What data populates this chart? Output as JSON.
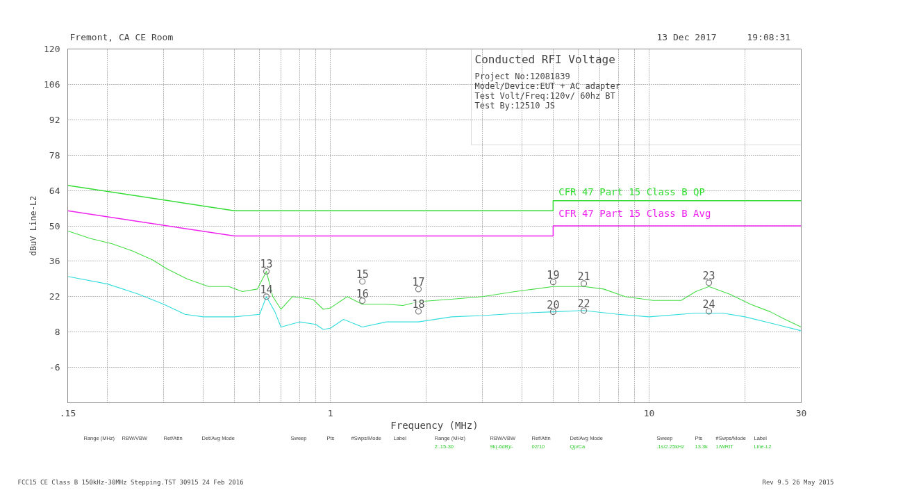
{
  "chart_data": {
    "type": "line",
    "title": "Conducted RFI Voltage",
    "xlabel": "Frequency (MHz)",
    "ylabel": "dBuV Line-L2",
    "log": "x",
    "xlim": [
      0.15,
      30
    ],
    "xticks": [
      {
        "value": 0.15,
        "label": ".15"
      },
      {
        "value": 0.2,
        "label": null
      },
      {
        "value": 0.3,
        "label": null
      },
      {
        "value": 0.4,
        "label": null
      },
      {
        "value": 0.5,
        "label": null
      },
      {
        "value": 0.6,
        "label": null
      },
      {
        "value": 0.7,
        "label": null
      },
      {
        "value": 0.8,
        "label": null
      },
      {
        "value": 0.9,
        "label": null
      },
      1,
      {
        "value": 2,
        "label": null
      },
      {
        "value": 3,
        "label": null
      },
      {
        "value": 4,
        "label": null
      },
      {
        "value": 5,
        "label": null
      },
      {
        "value": 6,
        "label": null
      },
      {
        "value": 7,
        "label": null
      },
      {
        "value": 8,
        "label": null
      },
      {
        "value": 9,
        "label": null
      },
      10,
      {
        "value": 20,
        "label": null
      },
      30
    ],
    "ylim": [
      -20,
      120
    ],
    "yticks": [
      -6,
      8,
      22,
      36,
      50,
      64,
      78,
      92,
      106,
      120
    ],
    "grid": true,
    "series": [
      {
        "name": "CFR 47 Part 15 Class B QP",
        "type": "line",
        "color": "#33dd33",
        "x": [
          0.15,
          0.5,
          5,
          5,
          30
        ],
        "values": [
          66,
          56,
          56,
          60,
          60
        ]
      },
      {
        "name": "CFR 47 Part 15 Class B Avg",
        "type": "line",
        "color": "#ee22ee",
        "x": [
          0.15,
          0.5,
          5,
          5,
          30
        ],
        "values": [
          56,
          46,
          46,
          50,
          50
        ]
      },
      {
        "color": "#44dd44",
        "x": [
          0.15,
          0.177,
          0.206,
          0.24,
          0.277,
          0.307,
          0.355,
          0.415,
          0.48,
          0.53,
          0.59,
          0.63,
          0.66,
          0.7,
          0.76,
          0.88,
          0.95,
          1.0,
          1.13,
          1.26,
          1.5,
          1.69,
          1.89,
          2.4,
          3.0,
          3.8,
          5.0,
          6.24,
          7.2,
          8.4,
          10.3,
          12.6,
          14,
          15.4,
          17.9,
          20.8,
          24,
          26.7,
          30
        ],
        "values": [
          48,
          45,
          43,
          40,
          36.5,
          33,
          29,
          26,
          26,
          24,
          25,
          32,
          22,
          17,
          22,
          21,
          17,
          17.5,
          22,
          19,
          19,
          18.5,
          20,
          21,
          22,
          24,
          26,
          26,
          25,
          22,
          20.5,
          20.5,
          24,
          26,
          23,
          19,
          16,
          13,
          10
        ]
      },
      {
        "color": "#33dddd",
        "x": [
          0.15,
          0.2,
          0.25,
          0.3,
          0.35,
          0.4,
          0.5,
          0.6,
          0.63,
          0.67,
          0.7,
          0.8,
          0.9,
          0.95,
          1.0,
          1.1,
          1.26,
          1.5,
          1.89,
          2.4,
          3,
          4,
          5,
          6.24,
          8,
          10,
          14,
          17,
          20,
          25,
          30
        ],
        "values": [
          30,
          27,
          23,
          19,
          15,
          14,
          14,
          15,
          22,
          16,
          10,
          12,
          11,
          9,
          9.5,
          13,
          10,
          12,
          12,
          14,
          14.5,
          15.5,
          16,
          16.5,
          15,
          14,
          15.5,
          15.5,
          14,
          11,
          8.5
        ]
      },
      {
        "type": "scatter",
        "marker": "circle",
        "color": "#777777",
        "x": [
          0.63,
          0.63,
          1.26,
          1.26,
          1.89,
          1.89,
          5.0,
          5.0,
          6.24,
          6.24,
          15.4,
          15.4
        ],
        "values": [
          32,
          22,
          28,
          20.4,
          25,
          16.2,
          27.8,
          16,
          27.2,
          16.5,
          27.5,
          16.2
        ]
      }
    ],
    "annotations": [
      "Fremont, CA CE Room",
      "13 Dec 2017",
      "19:08:31",
      "Project No:12081839",
      "Model/Device:EUT + AC adapter",
      "Test Volt/Freq:120v/ 60hz BT",
      "Test By:12510 JS",
      "Range (MHz)",
      "RBW/VBW",
      "Ref/Attn",
      "Det/Avg Mode",
      "Sweep",
      "Pts",
      "#Swps/Mode",
      "Label",
      "Range (MHz)",
      "RBW/VBW",
      "Ref/Attn",
      "Det/Avg Mode",
      "Sweep",
      "Pts",
      "#Swps/Mode",
      "Label",
      "2:.15-30",
      "9k(-6dB)/-",
      "02/10",
      "Qp/Ca",
      ".1s/2.25kHz",
      "13.3k",
      "1/WRIT",
      "Line-L2",
      "FCC15 CE Class B 150kHz-30MHz Stepping.TST 30915 24 Feb 2016",
      "Rev 9.5 26 May 2015",
      {
        "text": "13",
        "x": 0.63,
        "y": 32
      },
      {
        "text": "14",
        "x": 0.63,
        "y": 22
      },
      {
        "text": "15",
        "x": 1.26,
        "y": 28
      },
      {
        "text": "16",
        "x": 1.26,
        "y": 20.4
      },
      {
        "text": "17",
        "x": 1.89,
        "y": 25
      },
      {
        "text": "18",
        "x": 1.89,
        "y": 16.2
      },
      {
        "text": "19",
        "x": 5.0,
        "y": 27.8
      },
      {
        "text": "20",
        "x": 5.0,
        "y": 16
      },
      {
        "text": "21",
        "x": 6.24,
        "y": 27.2
      },
      {
        "text": "22",
        "x": 6.24,
        "y": 16.5
      },
      {
        "text": "23",
        "x": 15.4,
        "y": 27.5
      },
      {
        "text": "24",
        "x": 15.4,
        "y": 16.2
      }
    ]
  }
}
